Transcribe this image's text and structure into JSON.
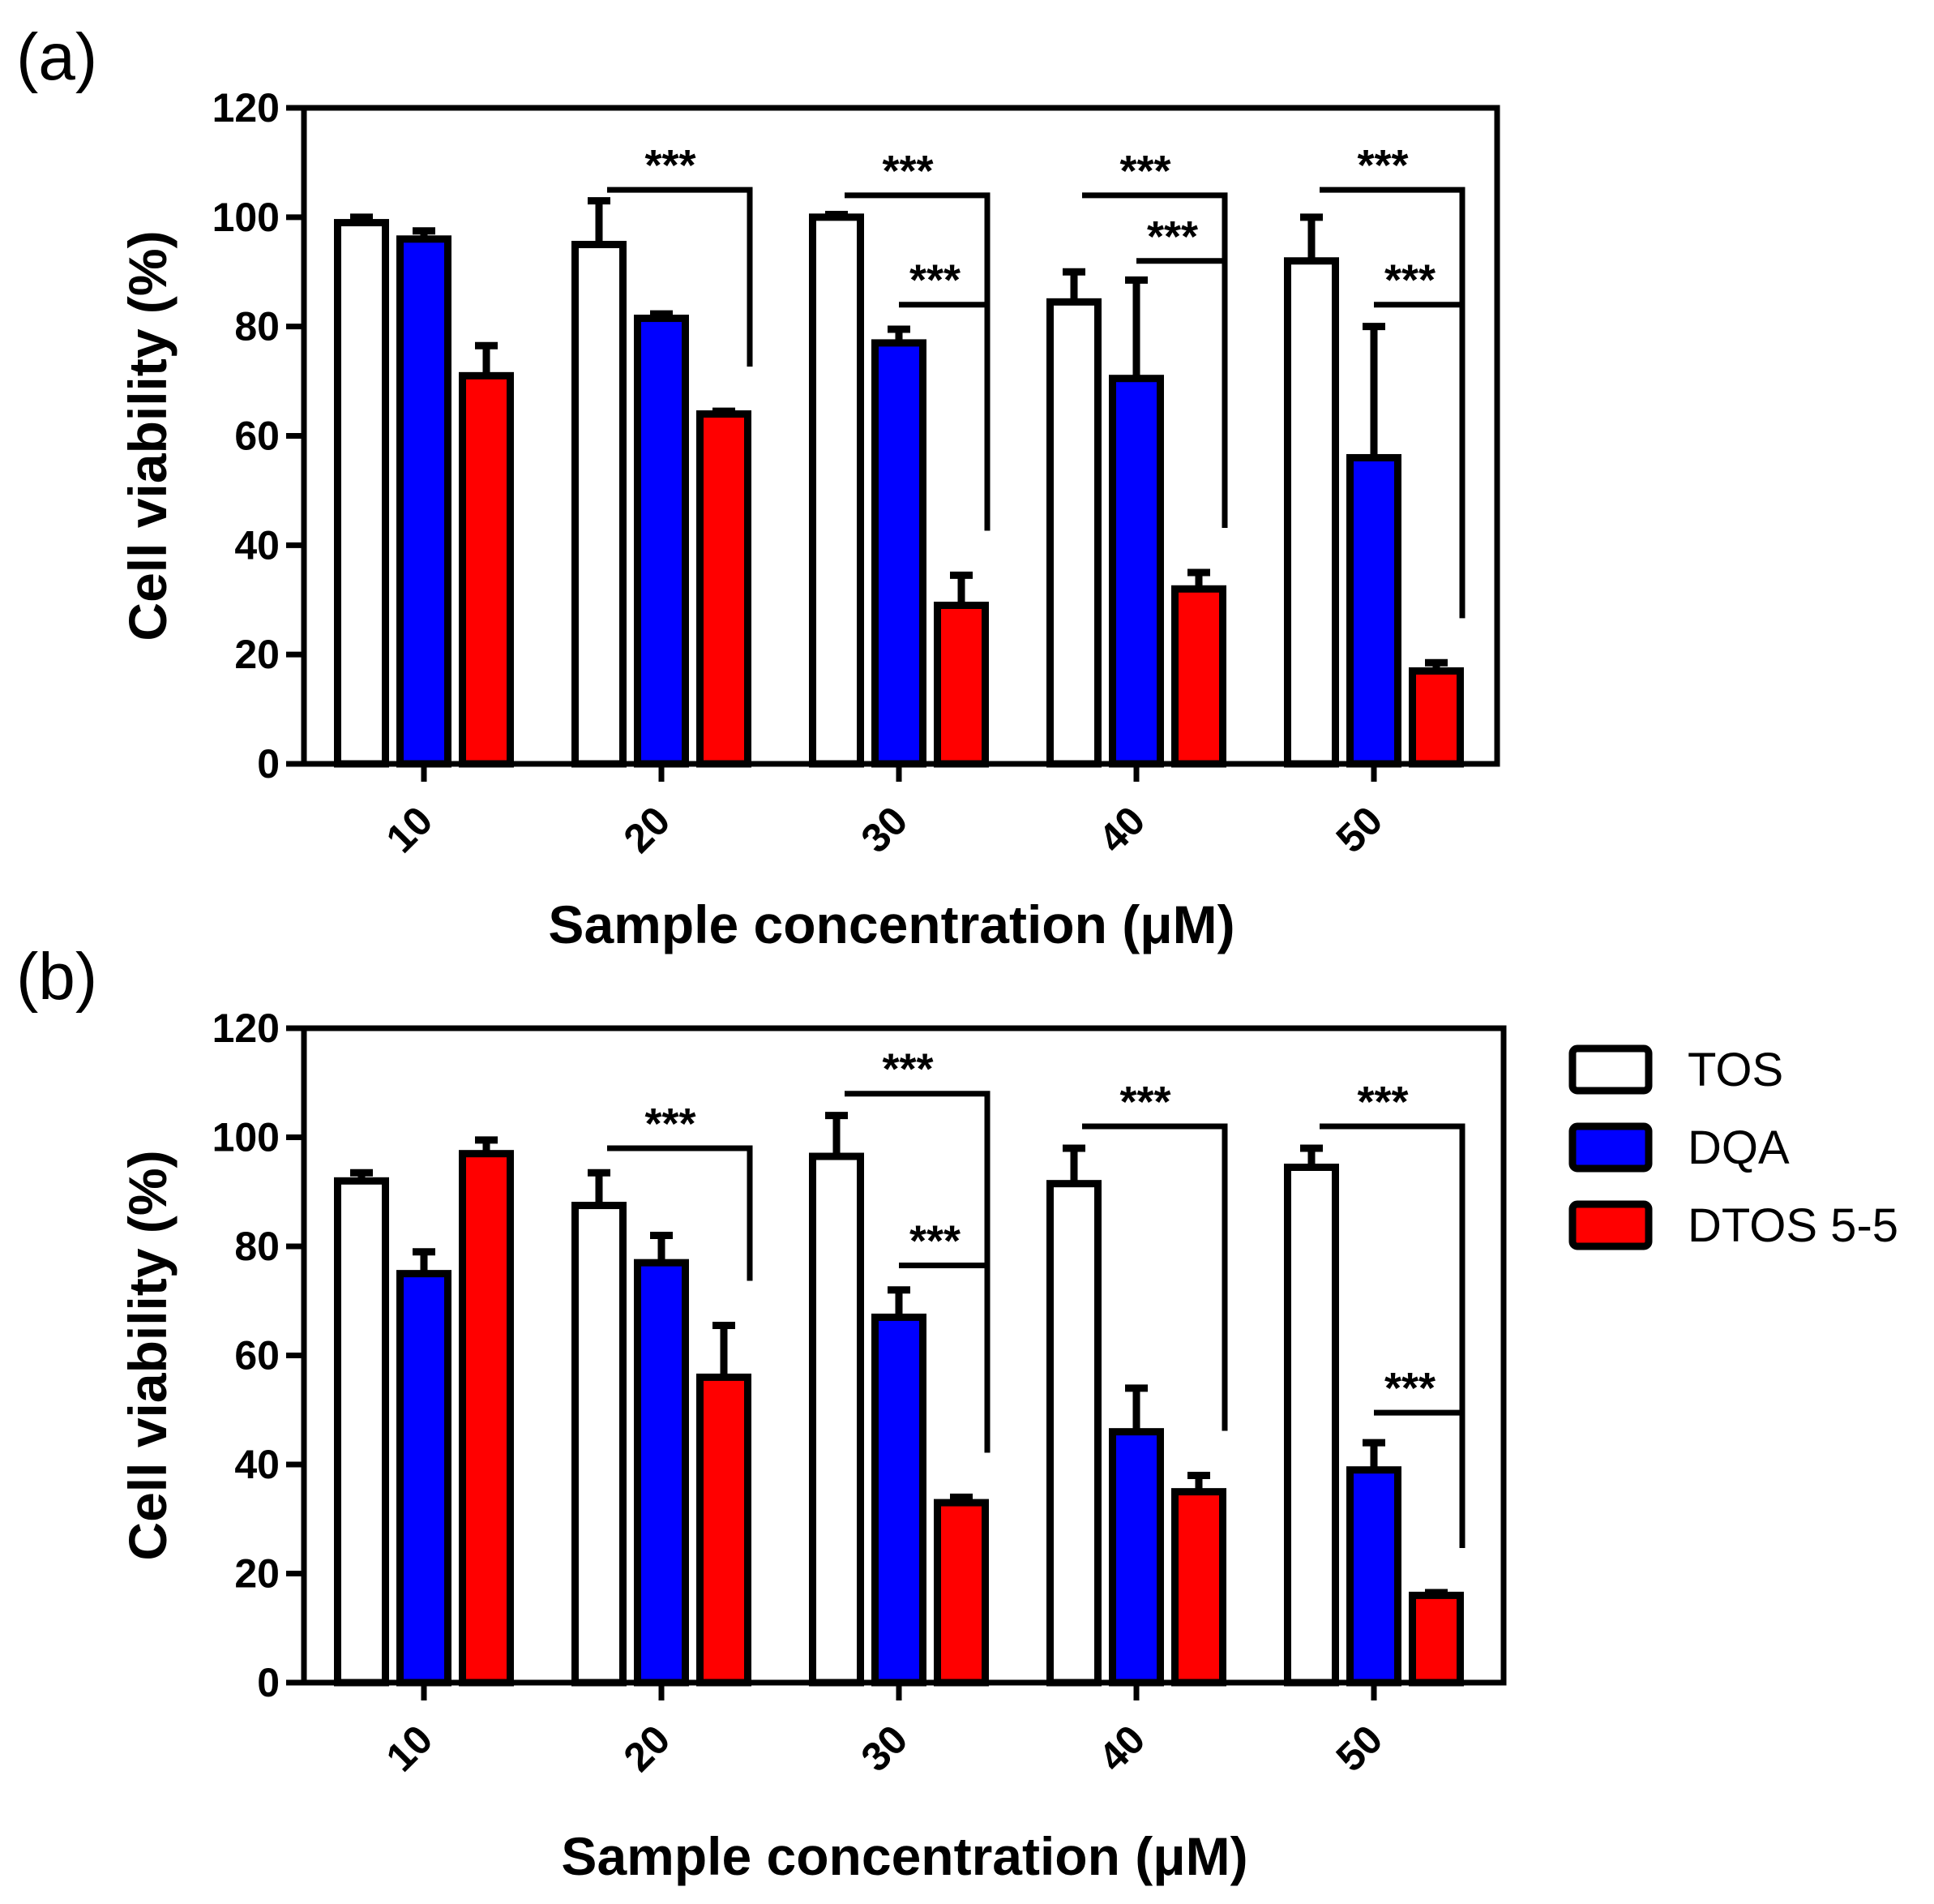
{
  "chart_data": [
    {
      "type": "bar",
      "panel_label": "(a)",
      "xlabel": "Sample concentration (μM)",
      "ylabel": "Cell viability (%)",
      "ylim": [
        0,
        120
      ],
      "yticks": [
        "0",
        "20",
        "40",
        "60",
        "80",
        "100",
        "120"
      ],
      "categories": [
        "10",
        "20",
        "30",
        "40",
        "50"
      ],
      "series": [
        {
          "name": "TOS",
          "color": "#ffffff",
          "values": [
            99,
            95,
            100,
            84.5,
            92
          ],
          "errors": [
            1,
            8,
            0.5,
            5.5,
            8
          ]
        },
        {
          "name": "DQA",
          "color": "#0000ff",
          "values": [
            96,
            81.5,
            77,
            70.5,
            56
          ],
          "errors": [
            1.5,
            0.8,
            2.5,
            18,
            24
          ]
        },
        {
          "name": "DTOS 5-5",
          "color": "#ff0000",
          "values": [
            71,
            64,
            29,
            32,
            17
          ],
          "errors": [
            5.5,
            0.5,
            5.5,
            3,
            1.5
          ]
        }
      ],
      "significance": [
        {
          "label": "***",
          "category": "20",
          "from": "TOS",
          "to": "DTOS 5-5",
          "top_y": 105
        },
        {
          "label": "***",
          "category": "30",
          "from": "TOS",
          "to": "DTOS 5-5",
          "top_y": 104
        },
        {
          "label": "***",
          "category": "30",
          "from": "DQA",
          "to": "DTOS 5-5",
          "top_y": 84
        },
        {
          "label": "***",
          "category": "40",
          "from": "TOS",
          "to": "DTOS 5-5",
          "top_y": 104
        },
        {
          "label": "***",
          "category": "40",
          "from": "DQA",
          "to": "DTOS 5-5",
          "top_y": 92
        },
        {
          "label": "***",
          "category": "50",
          "from": "TOS",
          "to": "DTOS 5-5",
          "top_y": 105
        },
        {
          "label": "***",
          "category": "50",
          "from": "DQA",
          "to": "DTOS 5-5",
          "top_y": 84
        }
      ]
    },
    {
      "type": "bar",
      "panel_label": "(b)",
      "xlabel": "Sample concentration (μM)",
      "ylabel": "Cell viability (%)",
      "ylim": [
        0,
        120
      ],
      "yticks": [
        "0",
        "20",
        "40",
        "60",
        "80",
        "100",
        "120"
      ],
      "categories": [
        "10",
        "20",
        "30",
        "40",
        "50"
      ],
      "series": [
        {
          "name": "TOS",
          "color": "#ffffff",
          "values": [
            92,
            87.5,
            96.5,
            91.5,
            94.5
          ],
          "errors": [
            1.5,
            6,
            7.5,
            6.5,
            3.5
          ]
        },
        {
          "name": "DQA",
          "color": "#0000ff",
          "values": [
            75,
            77,
            67,
            46,
            39
          ],
          "errors": [
            4,
            5,
            5,
            8,
            5
          ]
        },
        {
          "name": "DTOS 5-5",
          "color": "#ff0000",
          "values": [
            97,
            56,
            33,
            35,
            16
          ],
          "errors": [
            2.5,
            9.5,
            1,
            3,
            0.5
          ]
        }
      ],
      "significance": [
        {
          "label": "***",
          "category": "20",
          "from": "TOS",
          "to": "DTOS 5-5",
          "top_y": 98
        },
        {
          "label": "***",
          "category": "30",
          "from": "TOS",
          "to": "DTOS 5-5",
          "top_y": 108
        },
        {
          "label": "***",
          "category": "30",
          "from": "DQA",
          "to": "DTOS 5-5",
          "top_y": 76.5
        },
        {
          "label": "***",
          "category": "40",
          "from": "TOS",
          "to": "DTOS 5-5",
          "top_y": 102
        },
        {
          "label": "***",
          "category": "50",
          "from": "TOS",
          "to": "DTOS 5-5",
          "top_y": 102
        },
        {
          "label": "***",
          "category": "50",
          "from": "DQA",
          "to": "DTOS 5-5",
          "top_y": 49.5
        }
      ]
    }
  ],
  "legend": [
    {
      "name": "TOS",
      "color": "#ffffff"
    },
    {
      "name": "DQA",
      "color": "#0000ff"
    },
    {
      "name": "DTOS 5-5",
      "color": "#ff0000"
    }
  ]
}
